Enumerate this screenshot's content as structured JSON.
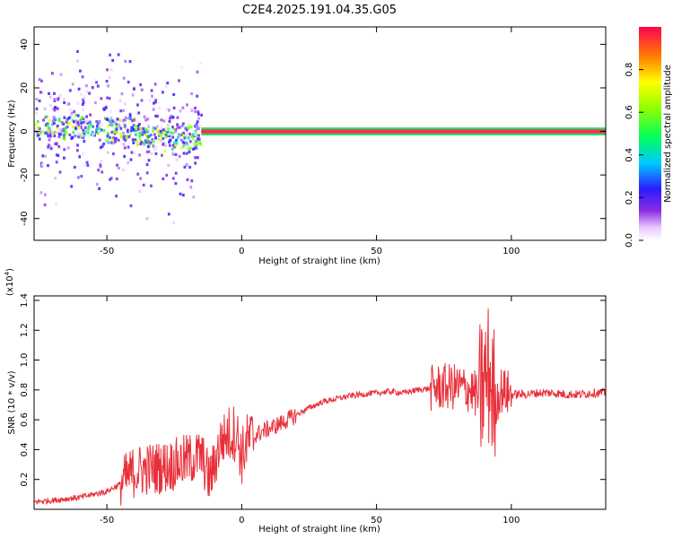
{
  "figure": {
    "title": "C2E4.2025.191.04.35.G05"
  },
  "chart_data": [
    {
      "type": "heatmap",
      "xlabel": "Height of straight line (km)",
      "ylabel": "Frequency (Hz)",
      "xlim": [
        -77,
        135
      ],
      "ylim": [
        -50,
        48
      ],
      "xticks": [
        "-50",
        "0",
        "50",
        "100"
      ],
      "yticks": [
        "-40",
        "-20",
        "0",
        "20",
        "40"
      ],
      "colorbar": {
        "label": "Normalized spectral amplitude",
        "range": [
          0,
          1
        ],
        "ticks": [
          "0.0",
          "0.2",
          "0.4",
          "0.6",
          "0.8"
        ]
      },
      "ridge": {
        "description_values": {
          "frequency_hz": 0,
          "x_start_km": -15,
          "x_end_km": 135,
          "amplitude": 0.9
        },
        "noisy_region_km": [
          -77,
          -15
        ]
      }
    },
    {
      "type": "line",
      "xlabel": "Height of straight line (km)",
      "ylabel": "SNR (10 * v/v)",
      "multiplier": "(x10",
      "multiplier_exp": "4",
      "multiplier_close": ")",
      "xlim": [
        -77,
        135
      ],
      "ylim": [
        0,
        1.43
      ],
      "xticks": [
        "-50",
        "0",
        "50",
        "100"
      ],
      "yticks": [
        "0.2",
        "0.4",
        "0.6",
        "0.8",
        "1.0",
        "1.2",
        "1.4"
      ],
      "color": "#e8303a",
      "series": [
        {
          "x": [
            -77,
            -70,
            -60,
            -50,
            -45,
            -40,
            -35,
            -30,
            -25,
            -20,
            -15,
            -12,
            -10,
            -8,
            -5,
            -2,
            0,
            2,
            5,
            10,
            15,
            20,
            25,
            30,
            35,
            40,
            45,
            50,
            55,
            60,
            65,
            70,
            75,
            80,
            85,
            88,
            90,
            92,
            94,
            96,
            100,
            105,
            110,
            115,
            120,
            125,
            130,
            135
          ],
          "y": [
            0.05,
            0.06,
            0.08,
            0.12,
            0.17,
            0.25,
            0.27,
            0.28,
            0.3,
            0.33,
            0.36,
            0.2,
            0.3,
            0.45,
            0.5,
            0.52,
            0.35,
            0.45,
            0.5,
            0.54,
            0.58,
            0.63,
            0.68,
            0.72,
            0.74,
            0.76,
            0.77,
            0.78,
            0.79,
            0.78,
            0.8,
            0.81,
            0.82,
            0.82,
            0.8,
            0.75,
            0.85,
            0.9,
            0.7,
            0.8,
            0.77,
            0.77,
            0.78,
            0.78,
            0.77,
            0.77,
            0.78,
            0.78
          ]
        }
      ]
    }
  ],
  "colors": {
    "line": "#e8303a",
    "frame": "#000000"
  }
}
